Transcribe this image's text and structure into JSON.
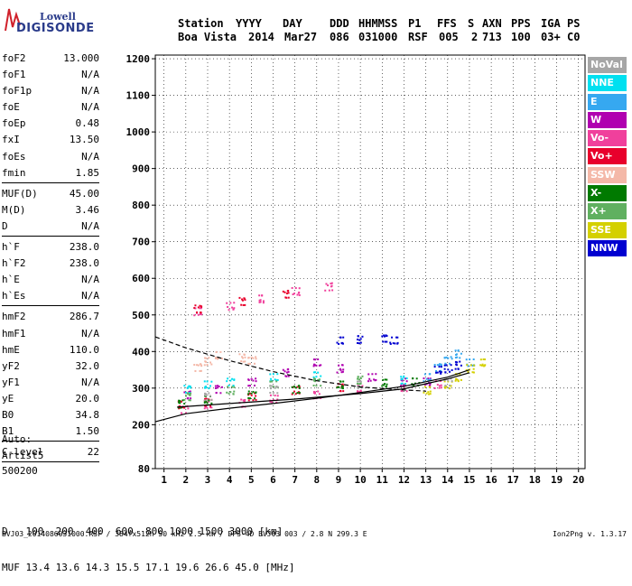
{
  "logo": {
    "line1": "Lowell",
    "line2": "DIGISONDE"
  },
  "header": {
    "row1": [
      "Station",
      "YYYY",
      "DAY",
      "DDD",
      "HHMMSS",
      "P1",
      "FFS",
      "S",
      "AXN",
      "PPS",
      "IGA",
      "PS"
    ],
    "row2": [
      "Boa Vista",
      "2014",
      "Mar27",
      "086",
      "031000",
      "RSF",
      "005",
      "2",
      "713",
      "100",
      "03+",
      "C0"
    ]
  },
  "params": {
    "group1": [
      {
        "name": "foF2",
        "value": "13.000"
      },
      {
        "name": "foF1",
        "value": "N/A"
      },
      {
        "name": "foF1p",
        "value": "N/A"
      },
      {
        "name": "foE",
        "value": "N/A"
      },
      {
        "name": "foEp",
        "value": "0.48"
      },
      {
        "name": "fxI",
        "value": "13.50"
      },
      {
        "name": "foEs",
        "value": "N/A"
      },
      {
        "name": "fmin",
        "value": "1.85"
      }
    ],
    "group2": [
      {
        "name": "MUF(D)",
        "value": "45.00"
      },
      {
        "name": "M(D)",
        "value": "3.46"
      },
      {
        "name": "D",
        "value": "N/A"
      }
    ],
    "group3": [
      {
        "name": "h`F",
        "value": "238.0"
      },
      {
        "name": "h`F2",
        "value": "238.0"
      },
      {
        "name": "h`E",
        "value": "N/A"
      },
      {
        "name": "h`Es",
        "value": "N/A"
      }
    ],
    "group4": [
      {
        "name": "hmF2",
        "value": "286.7"
      },
      {
        "name": "hmF1",
        "value": "N/A"
      },
      {
        "name": "hmE",
        "value": "110.0"
      },
      {
        "name": "yF2",
        "value": "32.0"
      },
      {
        "name": "yF1",
        "value": "N/A"
      },
      {
        "name": "yE",
        "value": "20.0"
      },
      {
        "name": "B0",
        "value": "34.8"
      },
      {
        "name": "B1",
        "value": "1.50"
      }
    ],
    "group5": [
      {
        "name": "C-level",
        "value": "22"
      }
    ]
  },
  "autoscale": {
    "label": "Auto:",
    "artist": "Artist5",
    "code": "500200"
  },
  "legend": [
    {
      "label": "NoVal",
      "color": "#a6a6a6"
    },
    {
      "label": "NNE",
      "color": "#00e0f0"
    },
    {
      "label": "E",
      "color": "#36a8f0"
    },
    {
      "label": "W",
      "color": "#b000b0"
    },
    {
      "label": "Vo-",
      "color": "#f0409c"
    },
    {
      "label": "Vo+",
      "color": "#e8002c"
    },
    {
      "label": "SSW",
      "color": "#f4b8a8"
    },
    {
      "label": "X-",
      "color": "#007a00"
    },
    {
      "label": "X+",
      "color": "#60b060"
    },
    {
      "label": "SSE",
      "color": "#d4d000"
    },
    {
      "label": "NNW",
      "color": "#0000d0"
    }
  ],
  "footer": {
    "d_label": "D",
    "d_values": "100  200  400  600  800 1000 1500 3000 [km]",
    "muf_label": "MUF",
    "muf_values": "13.4 13.6 14.3 15.5 17.1 19.6 26.6 45.0 [MHz]",
    "source": "BVJ03_2014086031000.RSF / 384fx512h 50 kHz 2.5 km / DPS-4D BVJ03 003 / 2.8 N 299.3 E",
    "version": "Ion2Png v. 1.3.17"
  },
  "chart_data": {
    "type": "scatter",
    "x_ticks": [
      1,
      2,
      3,
      4,
      5,
      6,
      7,
      8,
      9,
      10,
      11,
      12,
      13,
      14,
      15,
      16,
      17,
      18,
      19,
      20
    ],
    "y_ticks": [
      80,
      200,
      300,
      400,
      500,
      600,
      700,
      800,
      900,
      1000,
      1100,
      1200
    ],
    "xlim": [
      0.6,
      20.3
    ],
    "ylim": [
      80,
      1210
    ],
    "grid": true,
    "series": [
      {
        "color": "#f0409c",
        "points": [
          [
            1.9,
            245
          ],
          [
            3.0,
            255
          ],
          [
            4.5,
            262
          ],
          [
            6.0,
            272
          ],
          [
            8.0,
            285
          ],
          [
            10.0,
            298
          ],
          [
            12.0,
            305
          ],
          [
            13.5,
            312
          ],
          [
            2.5,
            510
          ],
          [
            4.0,
            525
          ],
          [
            5.5,
            545
          ],
          [
            7.0,
            565
          ],
          [
            8.5,
            580
          ]
        ]
      },
      {
        "color": "#b000b0",
        "points": [
          [
            2.0,
            285
          ],
          [
            3.5,
            300
          ],
          [
            5.0,
            320
          ],
          [
            6.5,
            345
          ],
          [
            8.0,
            370
          ],
          [
            9.0,
            355
          ],
          [
            10.5,
            330
          ],
          [
            12.0,
            320
          ],
          [
            13.0,
            318
          ]
        ]
      },
      {
        "color": "#00e0f0",
        "points": [
          [
            2.0,
            300
          ],
          [
            3.0,
            310
          ],
          [
            4.0,
            320
          ],
          [
            6.0,
            330
          ],
          [
            8.0,
            335
          ],
          [
            12.0,
            325
          ]
        ]
      },
      {
        "color": "#36a8f0",
        "points": [
          [
            13.5,
            360
          ],
          [
            14.0,
            380
          ],
          [
            14.5,
            395
          ],
          [
            15.0,
            370
          ],
          [
            13.0,
            330
          ]
        ]
      },
      {
        "color": "#e8002c",
        "points": [
          [
            1.8,
            255
          ],
          [
            3.0,
            265
          ],
          [
            5.0,
            280
          ],
          [
            7.0,
            295
          ],
          [
            9.0,
            305
          ],
          [
            2.5,
            520
          ],
          [
            4.5,
            540
          ],
          [
            6.5,
            560
          ]
        ]
      },
      {
        "color": "#f4b8a8",
        "points": [
          [
            2.5,
            360
          ],
          [
            3.0,
            375
          ],
          [
            3.5,
            390
          ],
          [
            4.5,
            385
          ],
          [
            5.0,
            380
          ]
        ]
      },
      {
        "color": "#007a00",
        "points": [
          [
            1.8,
            260
          ],
          [
            3.0,
            270
          ],
          [
            5.0,
            285
          ],
          [
            7.0,
            300
          ],
          [
            9.0,
            310
          ],
          [
            11.0,
            315
          ],
          [
            12.5,
            318
          ]
        ]
      },
      {
        "color": "#60b060",
        "points": [
          [
            2.0,
            280
          ],
          [
            4.0,
            295
          ],
          [
            6.0,
            310
          ],
          [
            8.0,
            320
          ],
          [
            10.0,
            325
          ]
        ]
      },
      {
        "color": "#d4d000",
        "points": [
          [
            13.0,
            295
          ],
          [
            14.0,
            310
          ],
          [
            14.5,
            330
          ],
          [
            15.0,
            355
          ],
          [
            15.5,
            370
          ]
        ]
      },
      {
        "color": "#0000d0",
        "points": [
          [
            9.0,
            430
          ],
          [
            10.0,
            435
          ],
          [
            11.0,
            440
          ],
          [
            11.5,
            430
          ],
          [
            13.5,
            350
          ],
          [
            14.0,
            355
          ],
          [
            14.5,
            365
          ]
        ]
      },
      {
        "color": "#a6a6a6",
        "points": [
          [
            3.0,
            280
          ],
          [
            6.0,
            300
          ],
          [
            10.0,
            310
          ],
          [
            14.0,
            320
          ]
        ]
      }
    ],
    "traces": [
      {
        "style": "solid",
        "points": [
          [
            0.6,
            208
          ],
          [
            2,
            230
          ],
          [
            4,
            245
          ],
          [
            6,
            258
          ],
          [
            8,
            272
          ],
          [
            10,
            288
          ],
          [
            12,
            305
          ],
          [
            14,
            330
          ],
          [
            15,
            350
          ]
        ]
      },
      {
        "style": "solid",
        "points": [
          [
            1.6,
            248
          ],
          [
            4,
            258
          ],
          [
            7,
            270
          ],
          [
            10,
            285
          ],
          [
            12,
            298
          ],
          [
            13,
            312
          ],
          [
            14,
            325
          ],
          [
            15,
            342
          ]
        ]
      },
      {
        "style": "dashed",
        "points": [
          [
            0.6,
            440
          ],
          [
            2,
            410
          ],
          [
            4,
            375
          ],
          [
            6,
            345
          ],
          [
            8,
            320
          ],
          [
            10,
            303
          ],
          [
            12,
            295
          ],
          [
            13,
            292
          ]
        ]
      }
    ]
  }
}
